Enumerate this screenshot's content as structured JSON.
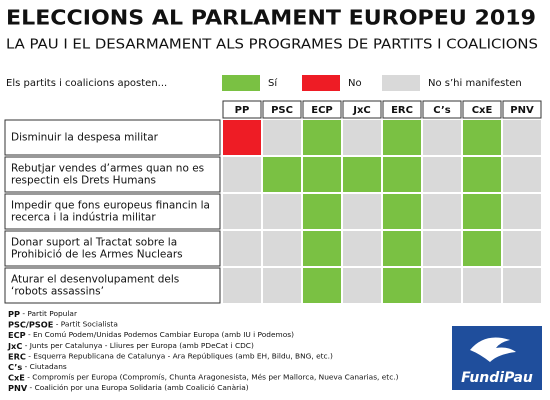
{
  "header": {
    "title": "ELECCIONS AL PARLAMENT EUROPEU 2019",
    "subtitle": "LA PAU I EL DESARMAMENT ALS PROGRAMES DE PARTITS I COALICIONS"
  },
  "legend": {
    "prompt": "Els partits i coalicions aposten...",
    "items": [
      {
        "label": "Sí",
        "color": "#7ac143"
      },
      {
        "label": "No",
        "color": "#ee1c25"
      },
      {
        "label": "No s’hi manifesten",
        "color": "#d9d9d9"
      }
    ]
  },
  "table": {
    "columns": [
      "PP",
      "PSC",
      "ECP",
      "JxC",
      "ERC",
      "C’s",
      "CxE",
      "PNV"
    ],
    "rows": [
      {
        "label": [
          "Disminuir la despesa militar"
        ],
        "cells": [
          1,
          2,
          0,
          2,
          0,
          2,
          0,
          2
        ]
      },
      {
        "label": [
          "Rebutjar vendes d’armes quan no es",
          "respectin els Drets Humans"
        ],
        "cells": [
          2,
          0,
          0,
          0,
          0,
          2,
          0,
          2
        ]
      },
      {
        "label": [
          "Impedir que fons europeus financin la",
          "recerca i la indústria militar"
        ],
        "cells": [
          2,
          2,
          0,
          2,
          0,
          2,
          0,
          2
        ]
      },
      {
        "label": [
          "Donar suport al Tractat sobre la",
          "Prohibició de les Armes Nuclears"
        ],
        "cells": [
          2,
          2,
          0,
          2,
          0,
          2,
          0,
          2
        ]
      },
      {
        "label": [
          "Aturar el desenvolupament dels",
          "‘robots assassins’"
        ],
        "cells": [
          2,
          2,
          0,
          2,
          0,
          2,
          2,
          2
        ]
      }
    ]
  },
  "notes": [
    {
      "abbr": "PP",
      "text": " - Partit Popular"
    },
    {
      "abbr": "PSC/PSOE",
      "text": " - Partit Socialista"
    },
    {
      "abbr": "ECP",
      "text": " - En Comú Podem/Unidas Podemos Cambiar Europa (amb IU i Podemos)"
    },
    {
      "abbr": "JxC",
      "text": " - Junts per Catalunya - Lliures per Europa (amb PDeCat i CDC)"
    },
    {
      "abbr": "ERC",
      "text": " - Esquerra Republicana de Catalunya - Ara Repúbliques (amb EH, Bildu, BNG, etc.)"
    },
    {
      "abbr": "C’s",
      "text": " - Ciutadans"
    },
    {
      "abbr": "CxE",
      "text": " - Compromís per Europa (Compromís, Chunta Aragonesista, Més per Mallorca, Nueva Canarias, etc.)"
    },
    {
      "abbr": "PNV",
      "text": " - Coalición por una Europa Solidaria (amb Coalició Canària)"
    }
  ],
  "logo": {
    "text": "FundiPau"
  }
}
